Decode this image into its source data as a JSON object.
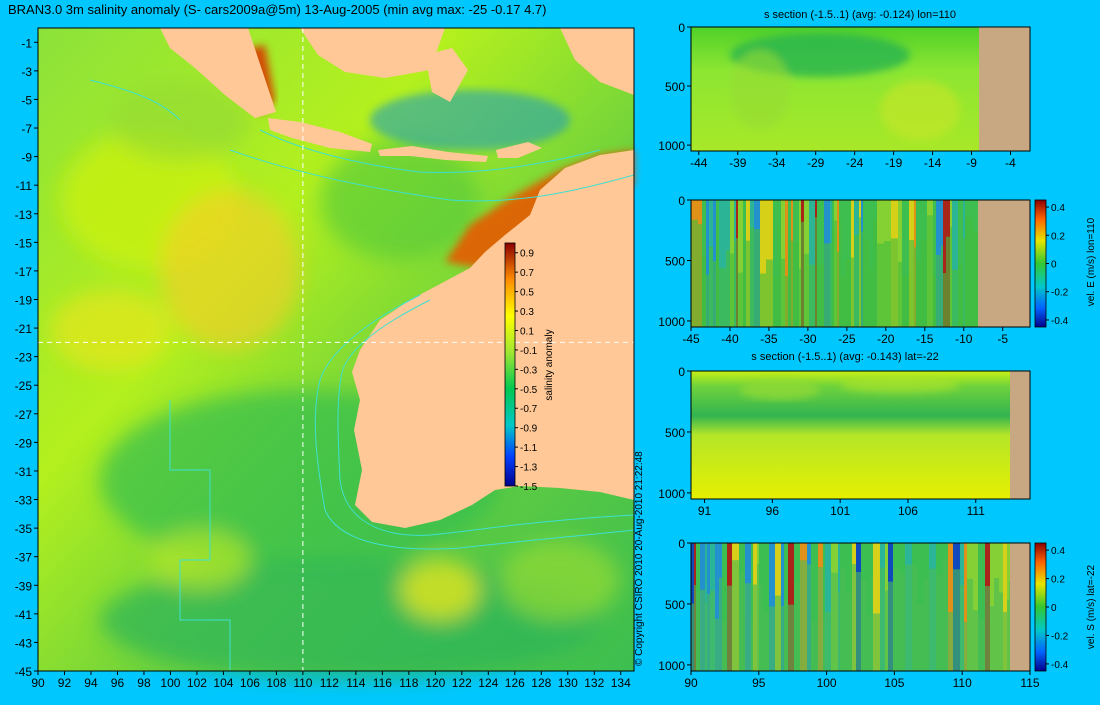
{
  "colors": {
    "background": "#00c8ff",
    "land": "#ffc896",
    "section_land": "#c8a882",
    "contour": "#40e0d0",
    "crosshair": "#ffffff"
  },
  "chart_data": [
    {
      "panel": "map",
      "type": "heatmap",
      "title": "BRAN3.0 3m salinity anomaly (S- cars2009a@5m) 13-Aug-2005 (min avg max: -25 -0.17 4.7)",
      "x_ticks": [
        "90",
        "92",
        "94",
        "96",
        "98",
        "100",
        "102",
        "104",
        "106",
        "108",
        "110",
        "112",
        "114",
        "116",
        "118",
        "120",
        "122",
        "124",
        "126",
        "128",
        "130",
        "132",
        "134"
      ],
      "y_ticks": [
        "-1",
        "-3",
        "-5",
        "-7",
        "-9",
        "-11",
        "-13",
        "-15",
        "-17",
        "-19",
        "-21",
        "-23",
        "-25",
        "-27",
        "-29",
        "-31",
        "-33",
        "-35",
        "-37",
        "-39",
        "-41",
        "-43",
        "-45"
      ],
      "xlim": [
        90,
        135
      ],
      "ylim": [
        -45,
        0
      ],
      "crosshair": {
        "lon": 110,
        "lat": -22
      },
      "colorbar": {
        "label": "salinity anomaly",
        "ticks": [
          "0.9",
          "0.7",
          "0.5",
          "0.3",
          "0.1",
          "-0.1",
          "-0.3",
          "-0.5",
          "-0.7",
          "-0.9",
          "-1.1",
          "-1.3",
          "-1.5"
        ],
        "range": [
          -1.5,
          1.0
        ]
      }
    },
    {
      "panel": "section1",
      "type": "heatmap",
      "title": "s section (-1.5..1) (avg: -0.124) lon=110",
      "x_ticks": [
        "-44",
        "-39",
        "-34",
        "-29",
        "-24",
        "-19",
        "-14",
        "-9",
        "-4"
      ],
      "xlim": [
        -45,
        -1.5
      ],
      "y_ticks": [
        "0",
        "500",
        "1000"
      ],
      "ylim": [
        0,
        1050
      ]
    },
    {
      "panel": "section2",
      "type": "heatmap",
      "title": "",
      "x_ticks": [
        "-45",
        "-40",
        "-35",
        "-30",
        "-25",
        "-20",
        "-15",
        "-10",
        "-5"
      ],
      "xlim": [
        -45,
        -1.5
      ],
      "y_ticks": [
        "0",
        "500",
        "1000"
      ],
      "ylim": [
        0,
        1050
      ],
      "colorbar": {
        "label": "vel. E (m/s) lon=110",
        "ticks": [
          "0.4",
          "0.2",
          "0",
          "-0.2",
          "-0.4"
        ],
        "range": [
          -0.45,
          0.45
        ]
      }
    },
    {
      "panel": "section3",
      "type": "heatmap",
      "title": "s section (-1.5..1) (avg: -0.143) lat=-22",
      "x_ticks": [
        "91",
        "96",
        "101",
        "106",
        "111"
      ],
      "xlim": [
        90,
        115
      ],
      "y_ticks": [
        "0",
        "500",
        "1000"
      ],
      "ylim": [
        0,
        1050
      ]
    },
    {
      "panel": "section4",
      "type": "heatmap",
      "title": "",
      "x_ticks": [
        "90",
        "95",
        "100",
        "105",
        "110",
        "115"
      ],
      "xlim": [
        90,
        115
      ],
      "y_ticks": [
        "0",
        "500",
        "1000"
      ],
      "ylim": [
        0,
        1050
      ],
      "colorbar": {
        "label": "vel. S (m/s) lat=-22",
        "ticks": [
          "0.4",
          "0.2",
          "0",
          "-0.2",
          "-0.4"
        ],
        "range": [
          -0.45,
          0.45
        ]
      }
    }
  ],
  "copyright": "© Copyright CSIRO 2010   20-Aug-2010 21:22:48"
}
